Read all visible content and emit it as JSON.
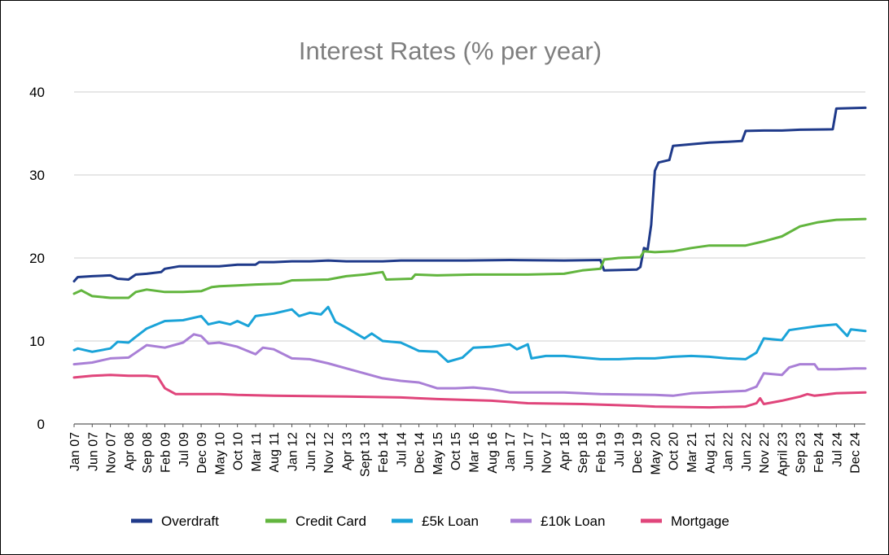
{
  "chart_data": {
    "type": "line",
    "title": "Interest Rates (% per year)",
    "xlabel": "",
    "ylabel": "",
    "ylim": [
      0,
      40
    ],
    "yticks": [
      0,
      10,
      20,
      30,
      40
    ],
    "grid": true,
    "legend_position": "bottom",
    "x_start": "2007-01",
    "x_end": "2025-03",
    "tick_labels": [
      {
        "label": "Jan 07",
        "date": "2007-01"
      },
      {
        "label": "Jun 07",
        "date": "2007-06"
      },
      {
        "label": "Nov 07",
        "date": "2007-11"
      },
      {
        "label": "Apr 08",
        "date": "2008-04"
      },
      {
        "label": "Sep 08",
        "date": "2008-09"
      },
      {
        "label": "Feb 09",
        "date": "2009-02"
      },
      {
        "label": "Jul 09",
        "date": "2009-07"
      },
      {
        "label": "Dec 09",
        "date": "2009-12"
      },
      {
        "label": "May 10",
        "date": "2010-05"
      },
      {
        "label": "Oct 10",
        "date": "2010-10"
      },
      {
        "label": "Mar 11",
        "date": "2011-03"
      },
      {
        "label": "Aug 11",
        "date": "2011-08"
      },
      {
        "label": "Jan 12",
        "date": "2012-01"
      },
      {
        "label": "Jun 12",
        "date": "2012-06"
      },
      {
        "label": "Nov 12",
        "date": "2012-11"
      },
      {
        "label": "Apr 13",
        "date": "2013-04"
      },
      {
        "label": "Sept 13",
        "date": "2013-09"
      },
      {
        "label": "Feb 14",
        "date": "2014-02"
      },
      {
        "label": "Jul 14",
        "date": "2014-07"
      },
      {
        "label": "Dec 14",
        "date": "2014-12"
      },
      {
        "label": "May 15",
        "date": "2015-05"
      },
      {
        "label": "Oct 15",
        "date": "2015-10"
      },
      {
        "label": "Mar 16",
        "date": "2016-03"
      },
      {
        "label": "Aug 16",
        "date": "2016-08"
      },
      {
        "label": "Jan 17",
        "date": "2017-01"
      },
      {
        "label": "Jun 17",
        "date": "2017-06"
      },
      {
        "label": "Nov 17",
        "date": "2017-11"
      },
      {
        "label": "Apr 18",
        "date": "2018-04"
      },
      {
        "label": "Sep 18",
        "date": "2018-09"
      },
      {
        "label": "Feb 19",
        "date": "2019-02"
      },
      {
        "label": "Jul 19",
        "date": "2019-07"
      },
      {
        "label": "Dec 19",
        "date": "2019-12"
      },
      {
        "label": "May 20",
        "date": "2020-05"
      },
      {
        "label": "Oct 20",
        "date": "2020-10"
      },
      {
        "label": "Mar 21",
        "date": "2021-03"
      },
      {
        "label": "Aug 21",
        "date": "2021-08"
      },
      {
        "label": "Jan 22",
        "date": "2022-01"
      },
      {
        "label": "Jun 22",
        "date": "2022-06"
      },
      {
        "label": "Nov 22",
        "date": "2022-11"
      },
      {
        "label": "April 23",
        "date": "2023-04"
      },
      {
        "label": "Sep 23",
        "date": "2023-09"
      },
      {
        "label": "Feb 24",
        "date": "2024-02"
      },
      {
        "label": "Jul 24",
        "date": "2024-07"
      },
      {
        "label": "Dec 24",
        "date": "2024-12"
      }
    ],
    "series": [
      {
        "name": "Overdraft",
        "color": "#1f3a8a",
        "points": [
          [
            "2007-01",
            17.2
          ],
          [
            "2007-02",
            17.7
          ],
          [
            "2007-06",
            17.8
          ],
          [
            "2007-11",
            17.9
          ],
          [
            "2008-01",
            17.5
          ],
          [
            "2008-04",
            17.4
          ],
          [
            "2008-06",
            18.0
          ],
          [
            "2008-09",
            18.1
          ],
          [
            "2009-01",
            18.3
          ],
          [
            "2009-02",
            18.7
          ],
          [
            "2009-06",
            19.0
          ],
          [
            "2009-12",
            19.0
          ],
          [
            "2010-05",
            19.0
          ],
          [
            "2010-10",
            19.2
          ],
          [
            "2011-03",
            19.2
          ],
          [
            "2011-04",
            19.5
          ],
          [
            "2011-08",
            19.5
          ],
          [
            "2012-01",
            19.6
          ],
          [
            "2012-06",
            19.6
          ],
          [
            "2012-11",
            19.7
          ],
          [
            "2013-04",
            19.6
          ],
          [
            "2014-02",
            19.6
          ],
          [
            "2014-07",
            19.7
          ],
          [
            "2016-01",
            19.7
          ],
          [
            "2017-01",
            19.75
          ],
          [
            "2018-04",
            19.7
          ],
          [
            "2019-02",
            19.75
          ],
          [
            "2019-03",
            18.5
          ],
          [
            "2019-12",
            18.6
          ],
          [
            "2020-01",
            18.9
          ],
          [
            "2020-02",
            21.2
          ],
          [
            "2020-03",
            21.0
          ],
          [
            "2020-04",
            24.0
          ],
          [
            "2020-05",
            30.5
          ],
          [
            "2020-06",
            31.5
          ],
          [
            "2020-09",
            31.8
          ],
          [
            "2020-10",
            33.5
          ],
          [
            "2021-03",
            33.7
          ],
          [
            "2021-08",
            33.9
          ],
          [
            "2022-01",
            34.0
          ],
          [
            "2022-05",
            34.1
          ],
          [
            "2022-06",
            35.3
          ],
          [
            "2022-11",
            35.35
          ],
          [
            "2023-04",
            35.35
          ],
          [
            "2023-09",
            35.45
          ],
          [
            "2024-06",
            35.5
          ],
          [
            "2024-07",
            38.0
          ],
          [
            "2025-03",
            38.1
          ]
        ]
      },
      {
        "name": "Credit Card",
        "color": "#62b53e",
        "points": [
          [
            "2007-01",
            15.7
          ],
          [
            "2007-03",
            16.1
          ],
          [
            "2007-06",
            15.4
          ],
          [
            "2007-11",
            15.2
          ],
          [
            "2008-04",
            15.2
          ],
          [
            "2008-06",
            15.9
          ],
          [
            "2008-09",
            16.2
          ],
          [
            "2009-02",
            15.9
          ],
          [
            "2009-07",
            15.9
          ],
          [
            "2009-12",
            16.0
          ],
          [
            "2010-03",
            16.5
          ],
          [
            "2010-05",
            16.6
          ],
          [
            "2010-10",
            16.7
          ],
          [
            "2011-03",
            16.8
          ],
          [
            "2011-10",
            16.9
          ],
          [
            "2012-01",
            17.3
          ],
          [
            "2012-11",
            17.4
          ],
          [
            "2013-04",
            17.8
          ],
          [
            "2013-09",
            18.0
          ],
          [
            "2014-02",
            18.3
          ],
          [
            "2014-03",
            17.4
          ],
          [
            "2014-10",
            17.5
          ],
          [
            "2014-11",
            18.0
          ],
          [
            "2015-05",
            17.9
          ],
          [
            "2016-03",
            18.0
          ],
          [
            "2017-06",
            18.0
          ],
          [
            "2018-04",
            18.1
          ],
          [
            "2018-09",
            18.5
          ],
          [
            "2019-02",
            18.7
          ],
          [
            "2019-03",
            19.8
          ],
          [
            "2019-07",
            20.0
          ],
          [
            "2020-01",
            20.1
          ],
          [
            "2020-02",
            20.8
          ],
          [
            "2020-05",
            20.7
          ],
          [
            "2020-10",
            20.8
          ],
          [
            "2021-03",
            21.2
          ],
          [
            "2021-08",
            21.5
          ],
          [
            "2022-01",
            21.5
          ],
          [
            "2022-06",
            21.5
          ],
          [
            "2022-11",
            22.0
          ],
          [
            "2023-04",
            22.6
          ],
          [
            "2023-09",
            23.8
          ],
          [
            "2024-02",
            24.3
          ],
          [
            "2024-07",
            24.6
          ],
          [
            "2025-03",
            24.7
          ]
        ]
      },
      {
        "name": "£5k Loan",
        "color": "#1aa3d8",
        "points": [
          [
            "2007-01",
            8.9
          ],
          [
            "2007-02",
            9.1
          ],
          [
            "2007-06",
            8.7
          ],
          [
            "2007-11",
            9.1
          ],
          [
            "2008-01",
            9.9
          ],
          [
            "2008-04",
            9.8
          ],
          [
            "2008-06",
            10.5
          ],
          [
            "2008-09",
            11.5
          ],
          [
            "2009-02",
            12.4
          ],
          [
            "2009-07",
            12.5
          ],
          [
            "2009-12",
            13.0
          ],
          [
            "2010-02",
            12.0
          ],
          [
            "2010-05",
            12.3
          ],
          [
            "2010-08",
            12.0
          ],
          [
            "2010-10",
            12.4
          ],
          [
            "2011-01",
            11.8
          ],
          [
            "2011-03",
            13.0
          ],
          [
            "2011-08",
            13.3
          ],
          [
            "2012-01",
            13.8
          ],
          [
            "2012-03",
            13.0
          ],
          [
            "2012-06",
            13.4
          ],
          [
            "2012-09",
            13.2
          ],
          [
            "2012-11",
            14.1
          ],
          [
            "2013-01",
            12.3
          ],
          [
            "2013-04",
            11.6
          ],
          [
            "2013-09",
            10.3
          ],
          [
            "2013-11",
            10.9
          ],
          [
            "2014-02",
            10.0
          ],
          [
            "2014-07",
            9.8
          ],
          [
            "2014-12",
            8.8
          ],
          [
            "2015-05",
            8.7
          ],
          [
            "2015-08",
            7.5
          ],
          [
            "2015-12",
            8.0
          ],
          [
            "2016-03",
            9.2
          ],
          [
            "2016-08",
            9.3
          ],
          [
            "2017-01",
            9.6
          ],
          [
            "2017-03",
            9.0
          ],
          [
            "2017-06",
            9.6
          ],
          [
            "2017-07",
            7.9
          ],
          [
            "2017-11",
            8.2
          ],
          [
            "2018-04",
            8.2
          ],
          [
            "2018-09",
            8.0
          ],
          [
            "2019-02",
            7.8
          ],
          [
            "2019-07",
            7.8
          ],
          [
            "2019-12",
            7.9
          ],
          [
            "2020-05",
            7.9
          ],
          [
            "2020-10",
            8.1
          ],
          [
            "2021-03",
            8.2
          ],
          [
            "2021-08",
            8.1
          ],
          [
            "2022-01",
            7.9
          ],
          [
            "2022-06",
            7.8
          ],
          [
            "2022-09",
            8.6
          ],
          [
            "2022-11",
            10.3
          ],
          [
            "2023-04",
            10.1
          ],
          [
            "2023-06",
            11.3
          ],
          [
            "2023-09",
            11.5
          ],
          [
            "2024-02",
            11.8
          ],
          [
            "2024-07",
            12.0
          ],
          [
            "2024-10",
            10.6
          ],
          [
            "2024-11",
            11.4
          ],
          [
            "2025-03",
            11.2
          ]
        ]
      },
      {
        "name": "£10k Loan",
        "color": "#a97fd6",
        "points": [
          [
            "2007-01",
            7.2
          ],
          [
            "2007-06",
            7.4
          ],
          [
            "2007-11",
            7.9
          ],
          [
            "2008-04",
            8.0
          ],
          [
            "2008-06",
            8.6
          ],
          [
            "2008-09",
            9.5
          ],
          [
            "2009-02",
            9.2
          ],
          [
            "2009-07",
            9.8
          ],
          [
            "2009-10",
            10.8
          ],
          [
            "2009-12",
            10.6
          ],
          [
            "2010-02",
            9.7
          ],
          [
            "2010-05",
            9.8
          ],
          [
            "2010-10",
            9.3
          ],
          [
            "2011-03",
            8.4
          ],
          [
            "2011-05",
            9.2
          ],
          [
            "2011-08",
            9.0
          ],
          [
            "2012-01",
            7.9
          ],
          [
            "2012-06",
            7.8
          ],
          [
            "2012-11",
            7.3
          ],
          [
            "2013-04",
            6.7
          ],
          [
            "2013-09",
            6.1
          ],
          [
            "2014-02",
            5.5
          ],
          [
            "2014-07",
            5.2
          ],
          [
            "2014-12",
            5.0
          ],
          [
            "2015-05",
            4.3
          ],
          [
            "2015-10",
            4.3
          ],
          [
            "2016-03",
            4.4
          ],
          [
            "2016-08",
            4.2
          ],
          [
            "2017-01",
            3.8
          ],
          [
            "2017-06",
            3.8
          ],
          [
            "2018-04",
            3.8
          ],
          [
            "2019-02",
            3.6
          ],
          [
            "2020-05",
            3.5
          ],
          [
            "2020-10",
            3.4
          ],
          [
            "2021-03",
            3.7
          ],
          [
            "2021-08",
            3.8
          ],
          [
            "2022-01",
            3.9
          ],
          [
            "2022-06",
            4.0
          ],
          [
            "2022-09",
            4.5
          ],
          [
            "2022-11",
            6.1
          ],
          [
            "2023-04",
            5.9
          ],
          [
            "2023-06",
            6.8
          ],
          [
            "2023-09",
            7.2
          ],
          [
            "2024-01",
            7.2
          ],
          [
            "2024-02",
            6.6
          ],
          [
            "2024-07",
            6.6
          ],
          [
            "2024-12",
            6.7
          ],
          [
            "2025-03",
            6.7
          ]
        ]
      },
      {
        "name": "Mortgage",
        "color": "#e0457b",
        "points": [
          [
            "2007-01",
            5.6
          ],
          [
            "2007-06",
            5.8
          ],
          [
            "2007-11",
            5.9
          ],
          [
            "2008-04",
            5.8
          ],
          [
            "2008-09",
            5.8
          ],
          [
            "2008-12",
            5.7
          ],
          [
            "2009-02",
            4.3
          ],
          [
            "2009-05",
            3.6
          ],
          [
            "2009-12",
            3.6
          ],
          [
            "2010-05",
            3.6
          ],
          [
            "2010-10",
            3.5
          ],
          [
            "2011-08",
            3.4
          ],
          [
            "2012-06",
            3.35
          ],
          [
            "2013-04",
            3.3
          ],
          [
            "2014-07",
            3.2
          ],
          [
            "2015-05",
            3.0
          ],
          [
            "2016-08",
            2.8
          ],
          [
            "2017-06",
            2.5
          ],
          [
            "2018-09",
            2.4
          ],
          [
            "2019-12",
            2.2
          ],
          [
            "2020-05",
            2.1
          ],
          [
            "2021-08",
            2.0
          ],
          [
            "2022-06",
            2.1
          ],
          [
            "2022-09",
            2.5
          ],
          [
            "2022-10",
            3.1
          ],
          [
            "2022-11",
            2.4
          ],
          [
            "2023-04",
            2.8
          ],
          [
            "2023-09",
            3.3
          ],
          [
            "2023-11",
            3.6
          ],
          [
            "2024-01",
            3.4
          ],
          [
            "2024-07",
            3.7
          ],
          [
            "2025-03",
            3.8
          ]
        ]
      }
    ]
  }
}
